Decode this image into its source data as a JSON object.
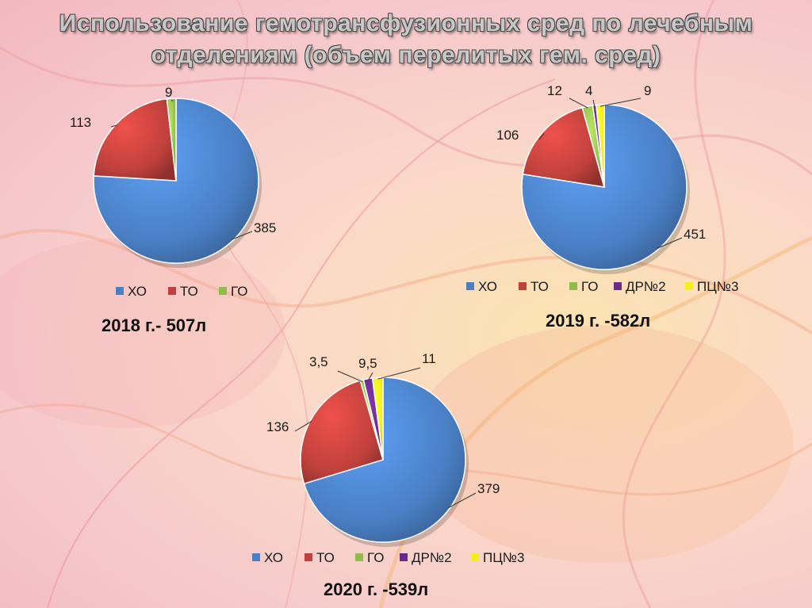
{
  "title_line1": "Использование гемотрансфузионных сред по лечебным",
  "title_line2": "отделениям (объем перелитых гем. сред)",
  "colors": {
    "ХО": "#4a7fc4",
    "ТО": "#c0413d",
    "ГО": "#92bb4e",
    "ДР№2": "#6a2a8a",
    "ПЦ№3": "#f4ee1f"
  },
  "chart_data": [
    {
      "type": "pie",
      "caption": "2018 г.- 507л",
      "categories": [
        "ХО",
        "ТО",
        "ГО"
      ],
      "values": [
        385,
        113,
        9
      ],
      "value_labels": [
        "385",
        "113",
        "9"
      ],
      "legend": [
        "ХО",
        "ТО",
        "ГО"
      ]
    },
    {
      "type": "pie",
      "caption": "2019 г. -582л",
      "categories": [
        "ХО",
        "ТО",
        "ГО",
        "ДР№2",
        "ПЦ№3"
      ],
      "values": [
        451,
        106,
        12,
        4,
        9
      ],
      "value_labels": [
        "451",
        "106",
        "12",
        "4",
        "9"
      ],
      "legend": [
        "ХО",
        "ТО",
        "ГО",
        "ДР№2",
        "ПЦ№3"
      ]
    },
    {
      "type": "pie",
      "caption": "2020 г. -539л",
      "categories": [
        "ХО",
        "ТО",
        "ГО",
        "ДР№2",
        "ПЦ№3"
      ],
      "values": [
        379,
        136,
        3.5,
        9.5,
        11
      ],
      "value_labels": [
        "379",
        "136",
        "3,5",
        "9,5",
        "11"
      ],
      "legend": [
        "ХО",
        "ТО",
        "ГО",
        "ДР№2",
        "ПЦ№3"
      ]
    }
  ]
}
